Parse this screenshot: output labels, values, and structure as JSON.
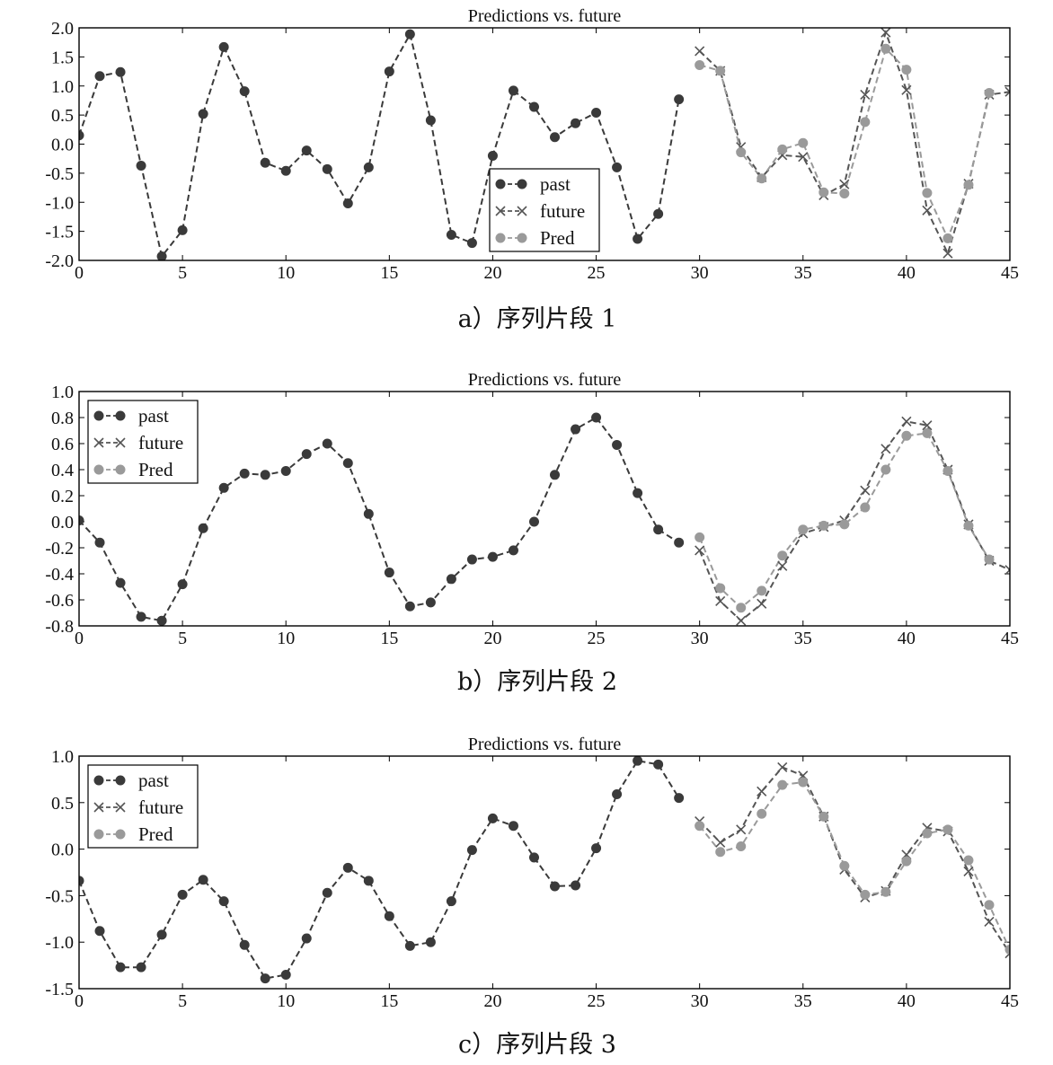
{
  "chart_data": [
    {
      "type": "line",
      "title": "Predictions vs. future",
      "caption": "a）序列片段 1",
      "xlim": [
        0,
        45
      ],
      "ylim": [
        -2.0,
        2.0
      ],
      "xticks": [
        0,
        5,
        10,
        15,
        20,
        25,
        30,
        35,
        40,
        45
      ],
      "yticks": [
        -2.0,
        -1.5,
        -1.0,
        -0.5,
        0.0,
        0.5,
        1.0,
        1.5,
        2.0
      ],
      "ytick_labels": [
        "-2.0",
        "-1.5",
        "-1.0",
        "-0.5",
        "0.0",
        "0.5",
        "1.0",
        "1.5",
        "2.0"
      ],
      "legend_position": "lower-center",
      "series": [
        {
          "name": "past",
          "marker": "filled-circle",
          "color": "#3a3a3a",
          "x": [
            0,
            1,
            2,
            3,
            4,
            5,
            6,
            7,
            8,
            9,
            10,
            11,
            12,
            13,
            14,
            15,
            16,
            17,
            18,
            19,
            20,
            21,
            22,
            23,
            24,
            25,
            26,
            27,
            28,
            29
          ],
          "values": [
            0.15,
            1.17,
            1.24,
            -0.37,
            -1.93,
            -1.48,
            0.52,
            1.67,
            0.91,
            -0.32,
            -0.46,
            -0.11,
            -0.43,
            -1.02,
            -0.4,
            1.25,
            1.89,
            0.41,
            -1.56,
            -1.7,
            -0.2,
            0.92,
            0.64,
            0.12,
            0.36,
            0.54,
            -0.4,
            -1.63,
            -1.2,
            0.77
          ]
        },
        {
          "name": "future",
          "marker": "x",
          "color": "#555555",
          "x": [
            30,
            31,
            32,
            33,
            34,
            35,
            36,
            37,
            38,
            39,
            40,
            41,
            42,
            43,
            44,
            45
          ],
          "values": [
            1.6,
            1.26,
            -0.05,
            -0.57,
            -0.19,
            -0.22,
            -0.88,
            -0.69,
            0.85,
            1.92,
            0.93,
            -1.14,
            -1.88,
            -0.68,
            0.85,
            0.9
          ]
        },
        {
          "name": "Pred",
          "marker": "filled-circle",
          "color": "#9a9a9a",
          "x": [
            30,
            31,
            32,
            33,
            34,
            35,
            36,
            37,
            38,
            39,
            40,
            41,
            42,
            43,
            44
          ],
          "values": [
            1.36,
            1.26,
            -0.14,
            -0.59,
            -0.09,
            0.02,
            -0.83,
            -0.85,
            0.38,
            1.64,
            1.28,
            -0.84,
            -1.62,
            -0.7,
            0.88
          ]
        }
      ]
    },
    {
      "type": "line",
      "title": "Predictions vs. future",
      "caption": "b）序列片段 2",
      "xlim": [
        0,
        45
      ],
      "ylim": [
        -0.8,
        1.0
      ],
      "xticks": [
        0,
        5,
        10,
        15,
        20,
        25,
        30,
        35,
        40,
        45
      ],
      "yticks": [
        -0.8,
        -0.6,
        -0.4,
        -0.2,
        0.0,
        0.2,
        0.4,
        0.6,
        0.8,
        1.0
      ],
      "ytick_labels": [
        "-0.8",
        "-0.6",
        "-0.4",
        "-0.2",
        "0.0",
        "0.2",
        "0.4",
        "0.6",
        "0.8",
        "1.0"
      ],
      "legend_position": "top-left",
      "series": [
        {
          "name": "past",
          "marker": "filled-circle",
          "color": "#3a3a3a",
          "x": [
            0,
            1,
            2,
            3,
            4,
            5,
            6,
            7,
            8,
            9,
            10,
            11,
            12,
            13,
            14,
            15,
            16,
            17,
            18,
            19,
            20,
            21,
            22,
            23,
            24,
            25,
            26,
            27,
            28,
            29
          ],
          "values": [
            0.01,
            -0.16,
            -0.47,
            -0.73,
            -0.76,
            -0.48,
            -0.05,
            0.26,
            0.37,
            0.36,
            0.39,
            0.52,
            0.6,
            0.45,
            0.06,
            -0.39,
            -0.65,
            -0.62,
            -0.44,
            -0.29,
            -0.27,
            -0.22,
            0.0,
            0.36,
            0.71,
            0.8,
            0.59,
            0.22,
            -0.06,
            -0.16
          ]
        },
        {
          "name": "future",
          "marker": "x",
          "color": "#555555",
          "x": [
            30,
            31,
            32,
            33,
            34,
            35,
            36,
            37,
            38,
            39,
            40,
            41,
            42,
            43,
            44,
            45
          ],
          "values": [
            -0.22,
            -0.61,
            -0.76,
            -0.63,
            -0.34,
            -0.09,
            -0.04,
            0.01,
            0.24,
            0.56,
            0.77,
            0.74,
            0.4,
            -0.02,
            -0.3,
            -0.37
          ]
        },
        {
          "name": "Pred",
          "marker": "filled-circle",
          "color": "#9a9a9a",
          "x": [
            30,
            31,
            32,
            33,
            34,
            35,
            36,
            37,
            38,
            39,
            40,
            41,
            42,
            43,
            44
          ],
          "values": [
            -0.12,
            -0.51,
            -0.66,
            -0.53,
            -0.26,
            -0.06,
            -0.03,
            -0.02,
            0.11,
            0.4,
            0.66,
            0.68,
            0.39,
            -0.03,
            -0.29
          ]
        }
      ]
    },
    {
      "type": "line",
      "title": "Predictions vs. future",
      "caption": "c）序列片段 3",
      "xlim": [
        0,
        45
      ],
      "ylim": [
        -1.5,
        1.0
      ],
      "xticks": [
        0,
        5,
        10,
        15,
        20,
        25,
        30,
        35,
        40,
        45
      ],
      "yticks": [
        -1.5,
        -1.0,
        -0.5,
        0.0,
        0.5,
        1.0
      ],
      "ytick_labels": [
        "-1.5",
        "-1.0",
        "-0.5",
        "0.0",
        "0.5",
        "1.0"
      ],
      "legend_position": "top-left",
      "series": [
        {
          "name": "past",
          "marker": "filled-circle",
          "color": "#3a3a3a",
          "x": [
            0,
            1,
            2,
            3,
            4,
            5,
            6,
            7,
            8,
            9,
            10,
            11,
            12,
            13,
            14,
            15,
            16,
            17,
            18,
            19,
            20,
            21,
            22,
            23,
            24,
            25,
            26,
            27,
            28,
            29
          ],
          "values": [
            -0.34,
            -0.88,
            -1.27,
            -1.27,
            -0.92,
            -0.49,
            -0.33,
            -0.56,
            -1.03,
            -1.39,
            -1.35,
            -0.96,
            -0.47,
            -0.2,
            -0.34,
            -0.72,
            -1.04,
            -1.0,
            -0.56,
            -0.01,
            0.33,
            0.25,
            -0.09,
            -0.4,
            -0.39,
            0.01,
            0.59,
            0.95,
            0.91,
            0.55
          ]
        },
        {
          "name": "future",
          "marker": "x",
          "color": "#555555",
          "x": [
            30,
            31,
            32,
            33,
            34,
            35,
            36,
            37,
            38,
            39,
            40,
            41,
            42,
            43,
            44,
            45
          ],
          "values": [
            0.3,
            0.07,
            0.21,
            0.62,
            0.88,
            0.79,
            0.35,
            -0.22,
            -0.52,
            -0.45,
            -0.06,
            0.23,
            0.19,
            -0.24,
            -0.78,
            -1.12
          ]
        },
        {
          "name": "Pred",
          "marker": "filled-circle",
          "color": "#9a9a9a",
          "x": [
            30,
            31,
            32,
            33,
            34,
            35,
            36,
            37,
            38,
            39,
            40,
            41,
            42,
            43,
            44,
            45
          ],
          "values": [
            0.25,
            -0.03,
            0.03,
            0.38,
            0.69,
            0.72,
            0.35,
            -0.18,
            -0.49,
            -0.46,
            -0.13,
            0.17,
            0.21,
            -0.12,
            -0.6,
            -1.08
          ]
        }
      ]
    }
  ]
}
